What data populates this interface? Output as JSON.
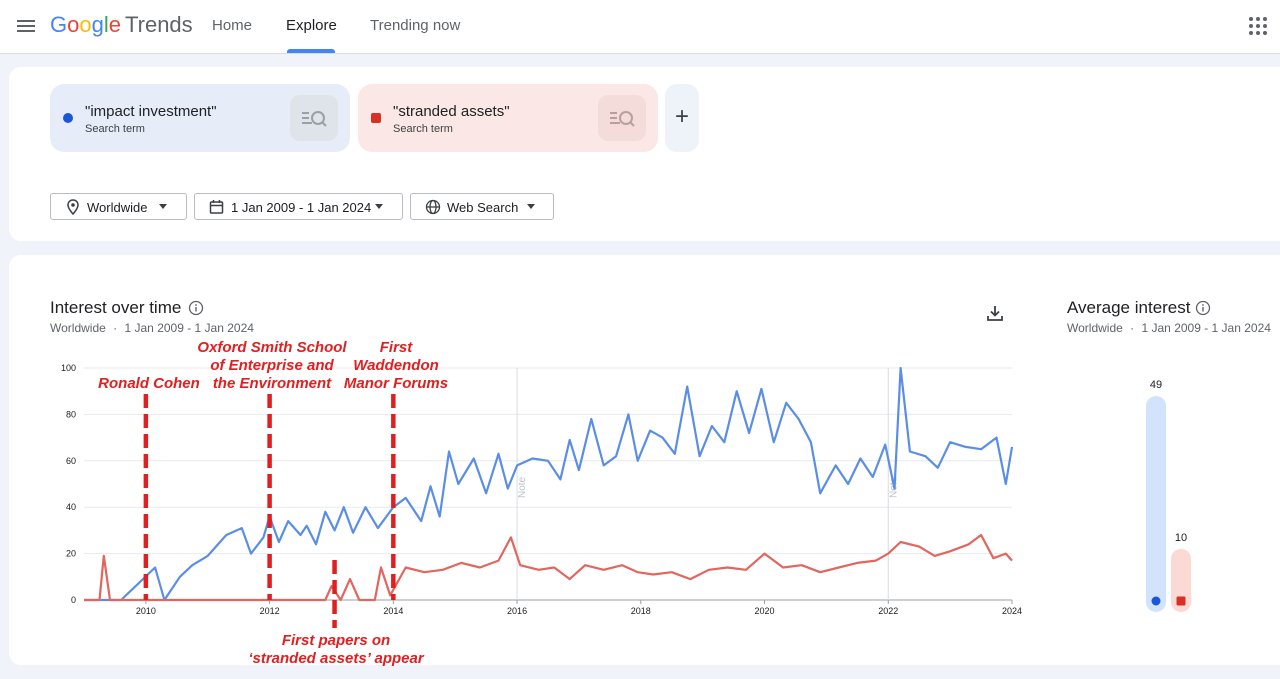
{
  "app": {
    "logo_google": [
      "G",
      "o",
      "o",
      "g",
      "l",
      "e"
    ],
    "logo_trends": "Trends",
    "nav": [
      "Home",
      "Explore",
      "Trending now"
    ],
    "active_tab": "Explore"
  },
  "colors": {
    "blue_series": "#5a8ee6",
    "red_series": "#e2665d",
    "blue_dot": "#1a56d6",
    "red_dot": "#d93025",
    "annotation": "#e02020"
  },
  "icons": [
    "menu-icon",
    "apps-icon",
    "search-icon",
    "add-icon",
    "location-pin-icon",
    "calendar-icon",
    "globe-icon",
    "chevron-down-icon",
    "info-icon",
    "download-icon"
  ],
  "terms": [
    {
      "name": "\"impact investment\"",
      "sub": "Search term"
    },
    {
      "name": "\"stranded assets\"",
      "sub": "Search term"
    }
  ],
  "add_label": "+",
  "filters": {
    "region": "Worldwide",
    "range": "1 Jan 2009 - 1 Jan 2024",
    "property": "Web Search"
  },
  "interest": {
    "title": "Interest over time",
    "region": "Worldwide",
    "dot": "·",
    "range": "1 Jan 2009 - 1 Jan 2024"
  },
  "average": {
    "title": "Average interest",
    "region": "Worldwide",
    "dot": "·",
    "range": "1 Jan 2009 - 1 Jan 2024",
    "values": [
      49,
      10
    ]
  },
  "notes": [
    "Note",
    "Note"
  ],
  "annotations": [
    {
      "lines": [
        "Ronald Cohen"
      ]
    },
    {
      "lines": [
        "Oxford Smith School",
        "of Enterprise and",
        "the Environment"
      ]
    },
    {
      "lines": [
        "First",
        "Waddendon",
        "Manor Forums"
      ]
    },
    {
      "lines": [
        "First papers on",
        "‘stranded assets’ appear"
      ]
    }
  ],
  "chart_data": {
    "type": "line",
    "xlim": [
      2009,
      2024
    ],
    "ylim": [
      0,
      100
    ],
    "x_ticks": [
      2010,
      2012,
      2014,
      2016,
      2018,
      2020,
      2022,
      2024
    ],
    "y_ticks": [
      0,
      20,
      40,
      60,
      80,
      100
    ],
    "grid": true,
    "series": [
      {
        "name": "\"impact investment\"",
        "points": [
          [
            2009.0,
            0
          ],
          [
            2009.6,
            0
          ],
          [
            2010.15,
            14
          ],
          [
            2010.3,
            0
          ],
          [
            2010.55,
            10
          ],
          [
            2010.75,
            15
          ],
          [
            2011.0,
            19
          ],
          [
            2011.3,
            28
          ],
          [
            2011.55,
            31
          ],
          [
            2011.7,
            20
          ],
          [
            2011.9,
            27
          ],
          [
            2012.0,
            36
          ],
          [
            2012.15,
            25
          ],
          [
            2012.3,
            34
          ],
          [
            2012.5,
            28
          ],
          [
            2012.6,
            32
          ],
          [
            2012.75,
            24
          ],
          [
            2012.9,
            38
          ],
          [
            2013.05,
            30
          ],
          [
            2013.2,
            40
          ],
          [
            2013.35,
            29
          ],
          [
            2013.55,
            40
          ],
          [
            2013.75,
            31
          ],
          [
            2014.0,
            40
          ],
          [
            2014.2,
            44
          ],
          [
            2014.45,
            34
          ],
          [
            2014.6,
            49
          ],
          [
            2014.75,
            36
          ],
          [
            2014.9,
            64
          ],
          [
            2015.05,
            50
          ],
          [
            2015.3,
            61
          ],
          [
            2015.5,
            46
          ],
          [
            2015.7,
            63
          ],
          [
            2015.85,
            48
          ],
          [
            2016.0,
            58
          ],
          [
            2016.25,
            61
          ],
          [
            2016.5,
            60
          ],
          [
            2016.7,
            52
          ],
          [
            2016.85,
            69
          ],
          [
            2017.0,
            56
          ],
          [
            2017.2,
            78
          ],
          [
            2017.4,
            58
          ],
          [
            2017.6,
            62
          ],
          [
            2017.8,
            80
          ],
          [
            2017.95,
            60
          ],
          [
            2018.15,
            73
          ],
          [
            2018.35,
            70
          ],
          [
            2018.55,
            63
          ],
          [
            2018.75,
            92
          ],
          [
            2018.95,
            62
          ],
          [
            2019.15,
            75
          ],
          [
            2019.35,
            68
          ],
          [
            2019.55,
            90
          ],
          [
            2019.75,
            72
          ],
          [
            2019.95,
            91
          ],
          [
            2020.15,
            68
          ],
          [
            2020.35,
            85
          ],
          [
            2020.55,
            78
          ],
          [
            2020.75,
            68
          ],
          [
            2020.9,
            46
          ],
          [
            2021.15,
            58
          ],
          [
            2021.35,
            50
          ],
          [
            2021.55,
            61
          ],
          [
            2021.75,
            53
          ],
          [
            2021.95,
            67
          ],
          [
            2022.1,
            48
          ],
          [
            2022.2,
            100
          ],
          [
            2022.35,
            64
          ],
          [
            2022.6,
            62
          ],
          [
            2022.8,
            57
          ],
          [
            2023.0,
            68
          ],
          [
            2023.25,
            66
          ],
          [
            2023.5,
            65
          ],
          [
            2023.75,
            70
          ],
          [
            2023.9,
            50
          ],
          [
            2024.0,
            66
          ]
        ]
      },
      {
        "name": "\"stranded assets\"",
        "points": [
          [
            2009.0,
            0
          ],
          [
            2009.25,
            0
          ],
          [
            2009.32,
            19
          ],
          [
            2009.42,
            0
          ],
          [
            2012.6,
            0
          ],
          [
            2012.9,
            0
          ],
          [
            2013.0,
            6
          ],
          [
            2013.15,
            0
          ],
          [
            2013.3,
            9
          ],
          [
            2013.45,
            0
          ],
          [
            2013.7,
            0
          ],
          [
            2013.8,
            14
          ],
          [
            2013.95,
            2
          ],
          [
            2014.2,
            14
          ],
          [
            2014.5,
            12
          ],
          [
            2014.8,
            13
          ],
          [
            2015.1,
            16
          ],
          [
            2015.4,
            14
          ],
          [
            2015.7,
            17
          ],
          [
            2015.9,
            27
          ],
          [
            2016.05,
            15
          ],
          [
            2016.35,
            13
          ],
          [
            2016.6,
            14
          ],
          [
            2016.85,
            9
          ],
          [
            2017.1,
            15
          ],
          [
            2017.4,
            13
          ],
          [
            2017.7,
            15
          ],
          [
            2017.95,
            12
          ],
          [
            2018.2,
            11
          ],
          [
            2018.5,
            12
          ],
          [
            2018.8,
            9
          ],
          [
            2019.1,
            13
          ],
          [
            2019.4,
            14
          ],
          [
            2019.7,
            13
          ],
          [
            2020.0,
            20
          ],
          [
            2020.3,
            14
          ],
          [
            2020.6,
            15
          ],
          [
            2020.9,
            12
          ],
          [
            2021.2,
            14
          ],
          [
            2021.5,
            16
          ],
          [
            2021.8,
            17
          ],
          [
            2022.0,
            20
          ],
          [
            2022.2,
            25
          ],
          [
            2022.5,
            23
          ],
          [
            2022.75,
            19
          ],
          [
            2023.0,
            21
          ],
          [
            2023.3,
            24
          ],
          [
            2023.5,
            28
          ],
          [
            2023.7,
            18
          ],
          [
            2023.9,
            20
          ],
          [
            2024.0,
            17
          ]
        ]
      }
    ],
    "annotation_years": [
      2010.0,
      2012.0,
      2013.05,
      2014.0
    ]
  }
}
